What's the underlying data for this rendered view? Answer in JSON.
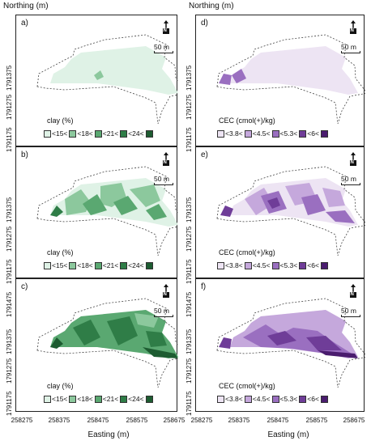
{
  "axes": {
    "ylabel": "Northing (m)",
    "xlabel": "Easting (m)",
    "yticks": [
      "1791475",
      "1791375",
      "1791275",
      "1791175"
    ],
    "xticks": [
      "258275",
      "258375",
      "258475",
      "258575",
      "258675"
    ]
  },
  "north_symbol": "N",
  "scale": "50 m",
  "clay": {
    "title": "clay (%)",
    "classes": [
      "<15<",
      "<18<",
      "<21<",
      "<24<",
      ""
    ],
    "colors": [
      "#dff2e6",
      "#8cc89d",
      "#5aa871",
      "#2f7d47",
      "#1d5c31"
    ]
  },
  "cec": {
    "title": "CEC (cmol(+)/kg)",
    "classes": [
      "<3.8<",
      "<4.5<",
      "<5.3<",
      "<6<",
      ""
    ],
    "colors": [
      "#ede4f3",
      "#c5a8dc",
      "#9a6fc0",
      "#6f3d98",
      "#4a1c6e"
    ]
  },
  "panels": [
    {
      "letter": "a)",
      "var": "clay"
    },
    {
      "letter": "b)",
      "var": "clay"
    },
    {
      "letter": "c)",
      "var": "clay"
    },
    {
      "letter": "d)",
      "var": "cec"
    },
    {
      "letter": "e)",
      "var": "cec"
    },
    {
      "letter": "f)",
      "var": "cec"
    }
  ]
}
